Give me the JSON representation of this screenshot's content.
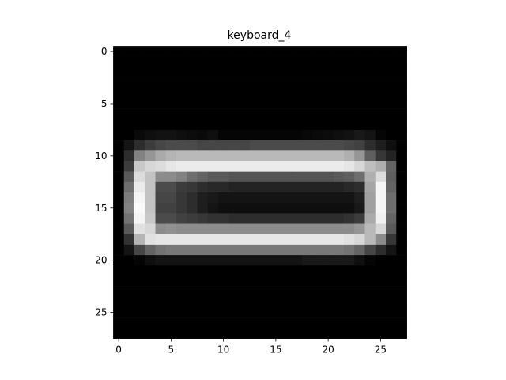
{
  "chart_data": {
    "type": "heatmap",
    "title": "keyboard_4",
    "xlabel": "",
    "ylabel": "",
    "colormap": "gray",
    "rows": 28,
    "cols": 28,
    "xlim": [
      -0.5,
      27.5
    ],
    "ylim": [
      27.5,
      -0.5
    ],
    "xticks": [
      0,
      5,
      10,
      15,
      20,
      25
    ],
    "yticks": [
      0,
      5,
      10,
      15,
      20,
      25
    ],
    "grid": false,
    "values": [
      [
        0,
        0,
        0,
        0,
        0,
        0,
        0,
        0,
        0,
        0,
        0,
        0,
        0,
        0,
        0,
        0,
        0,
        0,
        0,
        0,
        0,
        0,
        0,
        0,
        0,
        0,
        0,
        0
      ],
      [
        0,
        0,
        0,
        0,
        0,
        0,
        0,
        0,
        0,
        0,
        0,
        0,
        0,
        0,
        0,
        0,
        0,
        0,
        0,
        0,
        0,
        0,
        0,
        0,
        0,
        0,
        0,
        0
      ],
      [
        0,
        0,
        0,
        0,
        0,
        0,
        0,
        0,
        0,
        0,
        0,
        0,
        0,
        0,
        0,
        0,
        0,
        0,
        0,
        0,
        0,
        0,
        0,
        0,
        0,
        0,
        0,
        0
      ],
      [
        0,
        0,
        0,
        0,
        0,
        0,
        0,
        0,
        0,
        0,
        0,
        0,
        0,
        0,
        0,
        0,
        0,
        0,
        0,
        0,
        0,
        0,
        0,
        0,
        0,
        0,
        0,
        0
      ],
      [
        0,
        0,
        0,
        0,
        0,
        0,
        0,
        0,
        0,
        0,
        0,
        0,
        0,
        0,
        0,
        0,
        0,
        0,
        0,
        0,
        0,
        0,
        0,
        0,
        0,
        0,
        0,
        0
      ],
      [
        0,
        0,
        0,
        0,
        0,
        0,
        0,
        0,
        0,
        0,
        0,
        0,
        0,
        0,
        0,
        0,
        0,
        0,
        0,
        0,
        0,
        0,
        0,
        0,
        0,
        0,
        0,
        0
      ],
      [
        0,
        0,
        0,
        0,
        0,
        0,
        0,
        0,
        0,
        0,
        0,
        0,
        0,
        0,
        0,
        0,
        0,
        0,
        0,
        0,
        0,
        0,
        0,
        0,
        0,
        0,
        0,
        0
      ],
      [
        0,
        0,
        0,
        0,
        0,
        0,
        0,
        0,
        0,
        0,
        0,
        0,
        0,
        0,
        0,
        0,
        0,
        0,
        0,
        0,
        0,
        0,
        0,
        0,
        0,
        0,
        0,
        0
      ],
      [
        0,
        0,
        10,
        15,
        18,
        18,
        15,
        12,
        10,
        15,
        5,
        5,
        5,
        5,
        5,
        5,
        5,
        5,
        8,
        10,
        12,
        15,
        18,
        25,
        20,
        5,
        0,
        0
      ],
      [
        0,
        20,
        45,
        60,
        70,
        75,
        75,
        75,
        70,
        70,
        70,
        70,
        70,
        75,
        75,
        75,
        75,
        75,
        75,
        75,
        75,
        75,
        70,
        65,
        45,
        30,
        15,
        0
      ],
      [
        0,
        45,
        130,
        150,
        170,
        180,
        185,
        185,
        185,
        185,
        185,
        185,
        185,
        185,
        185,
        185,
        185,
        185,
        185,
        185,
        185,
        185,
        175,
        150,
        95,
        55,
        35,
        0
      ],
      [
        0,
        60,
        200,
        215,
        220,
        230,
        235,
        235,
        235,
        235,
        235,
        235,
        235,
        235,
        235,
        235,
        235,
        235,
        235,
        235,
        235,
        235,
        230,
        215,
        190,
        175,
        100,
        0
      ],
      [
        0,
        90,
        220,
        195,
        140,
        140,
        130,
        110,
        100,
        90,
        90,
        85,
        85,
        85,
        85,
        85,
        85,
        85,
        85,
        85,
        85,
        90,
        95,
        110,
        175,
        220,
        95,
        0
      ],
      [
        0,
        110,
        235,
        195,
        75,
        75,
        60,
        55,
        45,
        40,
        40,
        35,
        35,
        35,
        35,
        35,
        35,
        35,
        35,
        35,
        35,
        35,
        40,
        45,
        165,
        245,
        100,
        0
      ],
      [
        0,
        125,
        245,
        195,
        70,
        70,
        55,
        45,
        30,
        25,
        20,
        20,
        20,
        20,
        20,
        20,
        20,
        20,
        20,
        20,
        20,
        20,
        20,
        30,
        160,
        245,
        110,
        0
      ],
      [
        0,
        130,
        250,
        195,
        65,
        65,
        55,
        45,
        30,
        20,
        15,
        15,
        15,
        15,
        15,
        15,
        15,
        15,
        15,
        15,
        15,
        15,
        15,
        25,
        160,
        245,
        110,
        0
      ],
      [
        0,
        115,
        245,
        200,
        75,
        75,
        65,
        60,
        55,
        50,
        50,
        45,
        45,
        45,
        45,
        45,
        45,
        45,
        45,
        45,
        45,
        45,
        50,
        60,
        170,
        240,
        100,
        0
      ],
      [
        0,
        90,
        225,
        215,
        140,
        145,
        140,
        140,
        140,
        140,
        140,
        140,
        140,
        140,
        140,
        140,
        140,
        140,
        140,
        140,
        140,
        140,
        140,
        150,
        185,
        215,
        90,
        0
      ],
      [
        0,
        50,
        180,
        225,
        230,
        230,
        230,
        230,
        230,
        230,
        230,
        230,
        230,
        230,
        230,
        230,
        230,
        230,
        230,
        230,
        230,
        230,
        225,
        215,
        185,
        140,
        55,
        0
      ],
      [
        0,
        20,
        70,
        100,
        115,
        120,
        120,
        120,
        120,
        120,
        120,
        120,
        120,
        120,
        120,
        120,
        120,
        120,
        120,
        120,
        120,
        120,
        115,
        100,
        70,
        45,
        20,
        0
      ],
      [
        0,
        0,
        5,
        15,
        20,
        20,
        20,
        20,
        20,
        20,
        20,
        20,
        20,
        20,
        20,
        20,
        20,
        20,
        25,
        25,
        25,
        25,
        25,
        15,
        5,
        0,
        0,
        0
      ],
      [
        0,
        0,
        0,
        0,
        0,
        0,
        0,
        0,
        0,
        0,
        0,
        0,
        0,
        0,
        0,
        0,
        0,
        0,
        0,
        0,
        0,
        0,
        0,
        0,
        0,
        0,
        0,
        0
      ],
      [
        0,
        0,
        0,
        0,
        0,
        0,
        0,
        0,
        0,
        0,
        0,
        0,
        0,
        0,
        0,
        0,
        0,
        0,
        0,
        0,
        0,
        0,
        0,
        0,
        0,
        0,
        0,
        0
      ],
      [
        0,
        0,
        0,
        0,
        0,
        0,
        0,
        0,
        0,
        0,
        0,
        0,
        0,
        0,
        0,
        0,
        0,
        0,
        0,
        0,
        0,
        0,
        0,
        0,
        0,
        0,
        0,
        0
      ],
      [
        0,
        0,
        0,
        0,
        0,
        0,
        0,
        0,
        0,
        0,
        0,
        0,
        0,
        0,
        0,
        0,
        0,
        0,
        0,
        0,
        0,
        0,
        0,
        0,
        0,
        0,
        0,
        0
      ],
      [
        0,
        0,
        0,
        0,
        0,
        0,
        0,
        0,
        0,
        0,
        0,
        0,
        0,
        0,
        0,
        0,
        0,
        0,
        0,
        0,
        0,
        0,
        0,
        0,
        0,
        0,
        0,
        0
      ],
      [
        0,
        0,
        0,
        0,
        0,
        0,
        0,
        0,
        0,
        0,
        0,
        0,
        0,
        0,
        0,
        0,
        0,
        0,
        0,
        0,
        0,
        0,
        0,
        0,
        0,
        0,
        0,
        0
      ],
      [
        0,
        0,
        0,
        0,
        0,
        0,
        0,
        0,
        0,
        0,
        0,
        0,
        0,
        0,
        0,
        0,
        0,
        0,
        0,
        0,
        0,
        0,
        0,
        0,
        0,
        0,
        0,
        0
      ]
    ]
  }
}
